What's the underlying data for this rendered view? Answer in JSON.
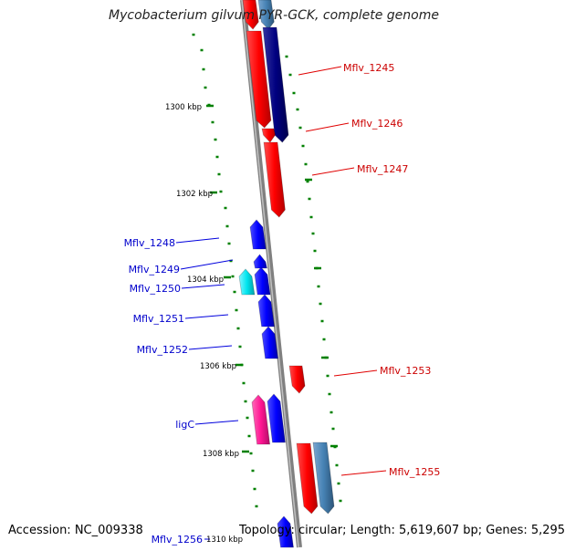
{
  "title": "Mycobacterium gilvum PYR-GCK, complete genome",
  "footer": {
    "accession": "Accession: NC_009338",
    "topology": "Topology: circular; Length: 5,619,607 bp; Genes: 5,295"
  },
  "colors": {
    "forward_gene": "#ff0000",
    "forward_gene_dark": "#000080",
    "reverse_gene": "#0000ff",
    "cyan_gene": "#00e5ee",
    "steelblue_gene": "#4682b4",
    "pink_gene": "#ff1493",
    "axis": "#808080",
    "ticks": "#008000",
    "label_right": "#cc0000",
    "label_left": "#0000cc"
  },
  "ruler_labels": [
    "1300 kbp",
    "1302 kbp",
    "1304 kbp",
    "1306 kbp",
    "1308 kbp",
    "1310 kbp"
  ],
  "gene_labels_right": [
    "Mflv_1245",
    "Mflv_1246",
    "Mflv_1247",
    "Mflv_1253",
    "Mflv_1255"
  ],
  "gene_labels_left": [
    "Mflv_1248",
    "Mflv_1249",
    "Mflv_1250",
    "Mflv_1251",
    "Mflv_1252",
    "ligC",
    "Mflv_1256"
  ]
}
